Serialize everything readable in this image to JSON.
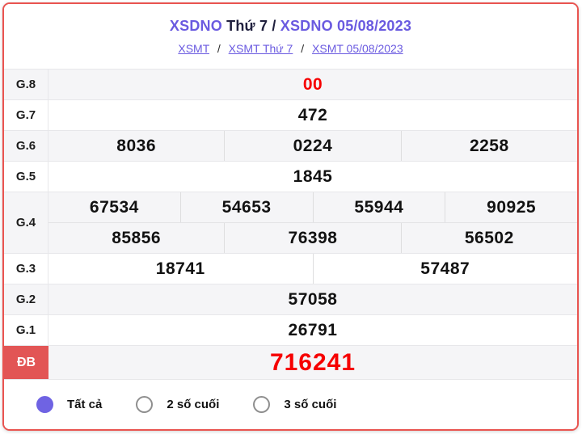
{
  "colors": {
    "border_red": "#e95450",
    "accent_purple": "#6a5ae0",
    "radio_purple": "#6f63e3",
    "special_label_bg": "#e25555",
    "red_value": "#f60000",
    "shaded_row_bg": "#f5f5f7"
  },
  "header": {
    "title": {
      "part1": "XSDNO",
      "part2": " Thứ 7 / ",
      "part3": "XSDNO 05/08/2023"
    },
    "separator": "/",
    "links": [
      {
        "label": "XSMT"
      },
      {
        "label": "XSMT Thứ 7"
      },
      {
        "label": "XSMT 05/08/2023"
      }
    ]
  },
  "table": {
    "rows": [
      {
        "label": "G.8",
        "style": "shaded",
        "red_value": true,
        "groups": [
          [
            "00"
          ]
        ]
      },
      {
        "label": "G.7",
        "style": "plain",
        "red_value": false,
        "groups": [
          [
            "472"
          ]
        ]
      },
      {
        "label": "G.6",
        "style": "shaded",
        "red_value": false,
        "groups": [
          [
            "8036",
            "0224",
            "2258"
          ]
        ]
      },
      {
        "label": "G.5",
        "style": "plain",
        "red_value": false,
        "groups": [
          [
            "1845"
          ]
        ]
      },
      {
        "label": "G.4",
        "style": "shaded",
        "red_value": false,
        "groups": [
          [
            "67534",
            "54653",
            "55944",
            "90925"
          ],
          [
            "85856",
            "76398",
            "56502"
          ]
        ]
      },
      {
        "label": "G.3",
        "style": "plain",
        "red_value": false,
        "groups": [
          [
            "18741",
            "57487"
          ]
        ]
      },
      {
        "label": "G.2",
        "style": "shaded",
        "red_value": false,
        "groups": [
          [
            "57058"
          ]
        ]
      },
      {
        "label": "G.1",
        "style": "plain",
        "red_value": false,
        "groups": [
          [
            "26791"
          ]
        ]
      },
      {
        "label": "ĐB",
        "style": "special",
        "red_value": true,
        "groups": [
          [
            "716241"
          ]
        ]
      }
    ]
  },
  "footer": {
    "options": [
      {
        "label": "Tất cả",
        "selected": true
      },
      {
        "label": "2 số cuối",
        "selected": false
      },
      {
        "label": "3 số cuối",
        "selected": false
      }
    ]
  }
}
